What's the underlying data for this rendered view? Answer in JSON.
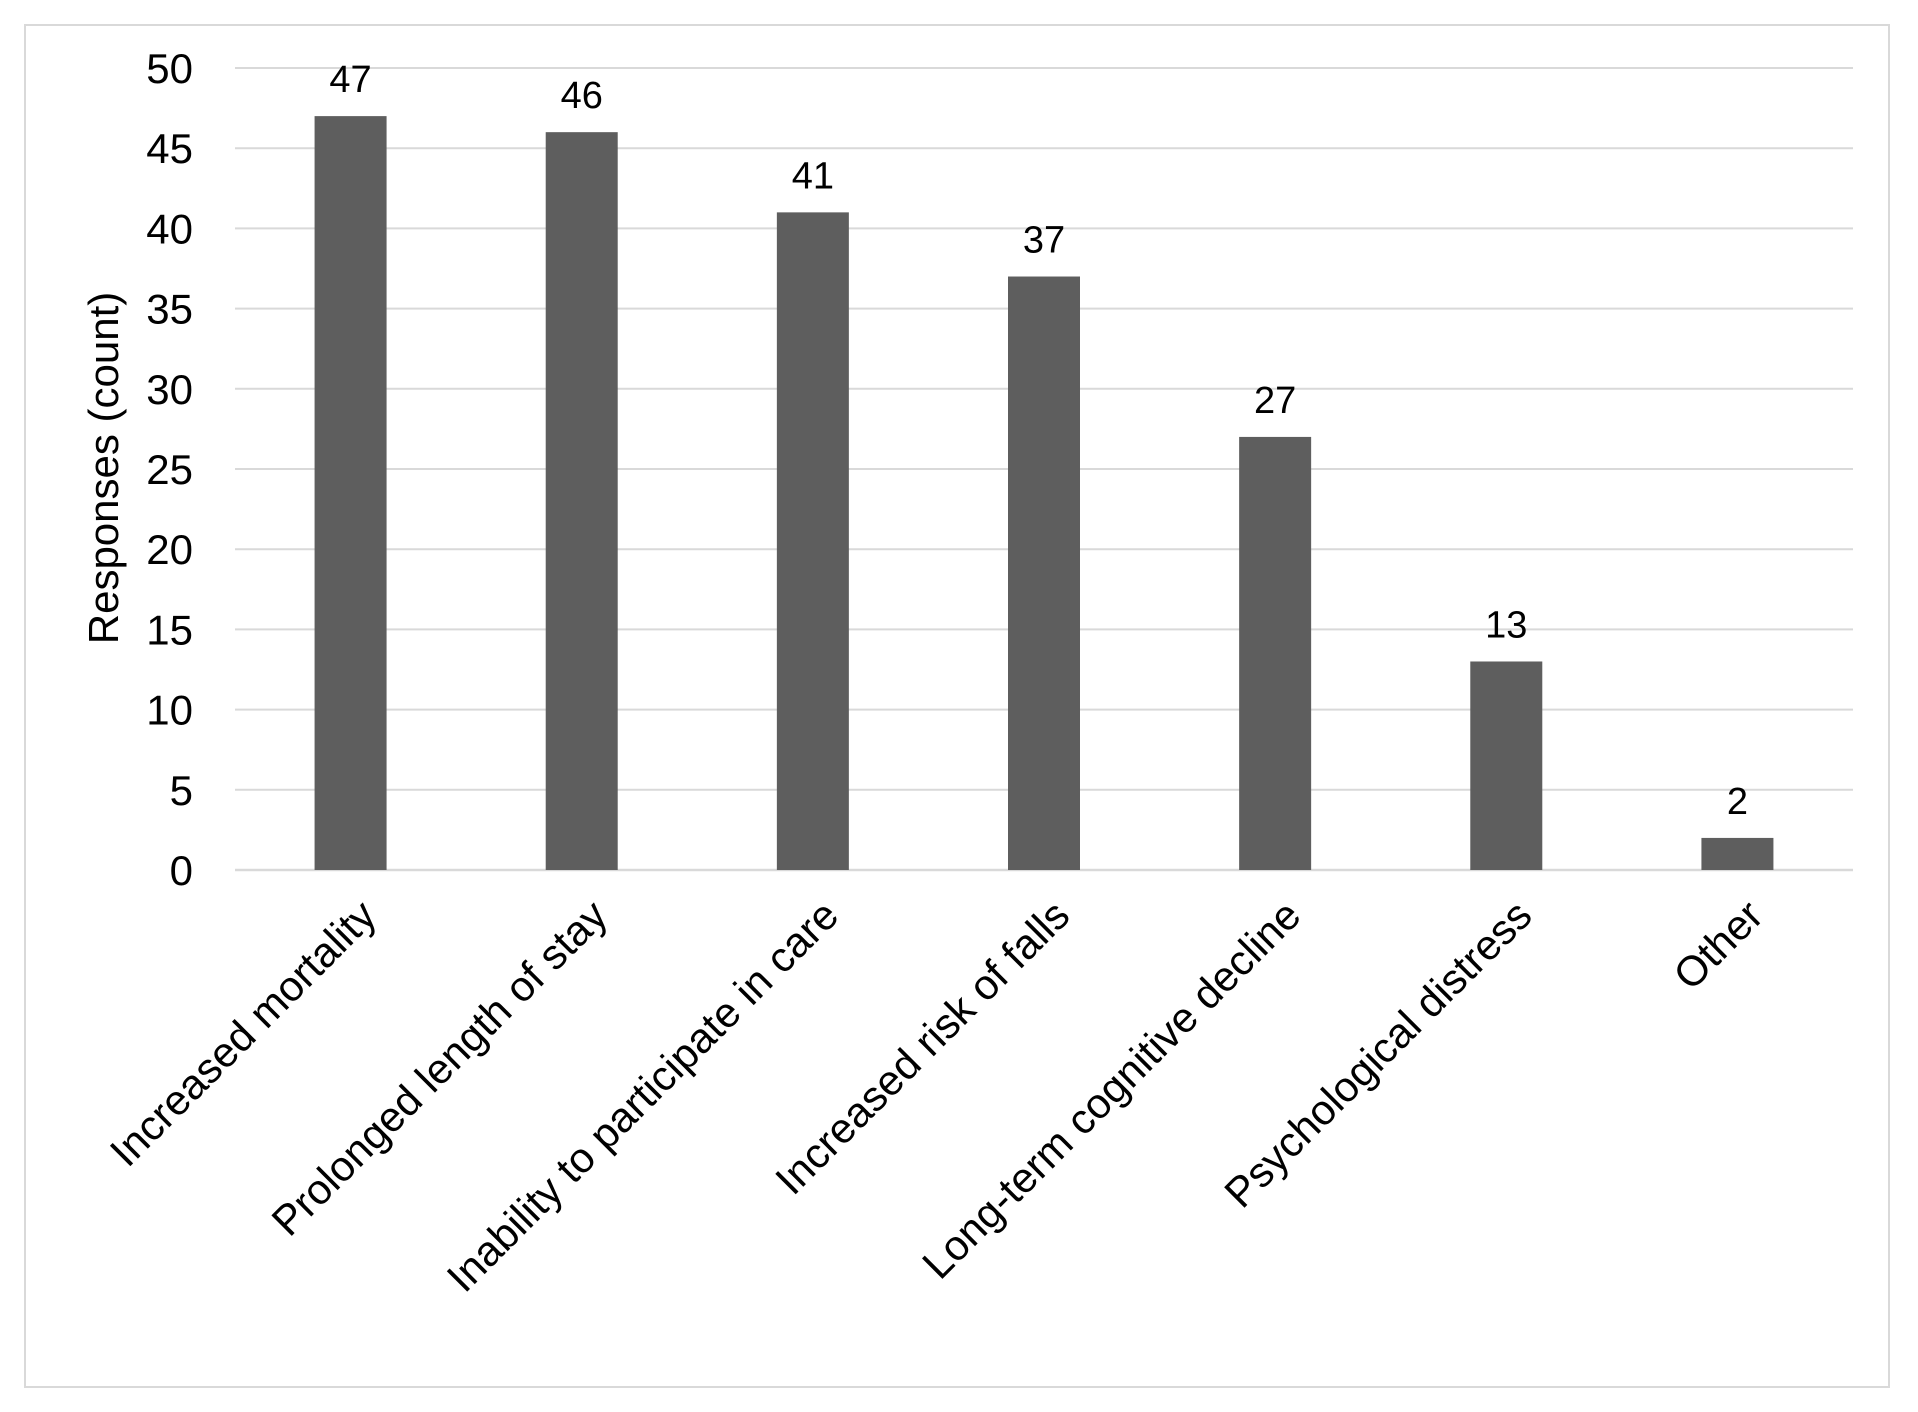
{
  "chart_data": {
    "type": "bar",
    "title": "",
    "xlabel": "",
    "ylabel": "Responses (count)",
    "categories": [
      "Increased mortality",
      "Prolonged length of stay",
      "Inability to participate in care",
      "Increased risk of falls",
      "Long-term cognitive decline",
      "Psychological distress",
      "Other"
    ],
    "values": [
      47,
      46,
      41,
      37,
      27,
      13,
      2
    ],
    "ylim": [
      0,
      50
    ],
    "yticks": [
      0,
      5,
      10,
      15,
      20,
      25,
      30,
      35,
      40,
      45,
      50
    ],
    "grid": true,
    "legend": false,
    "data_labels": true,
    "colors": {
      "bar": "#5e5e5e",
      "grid": "#d9d9d9",
      "frame": "#d9d9d9",
      "text": "#000000"
    }
  }
}
